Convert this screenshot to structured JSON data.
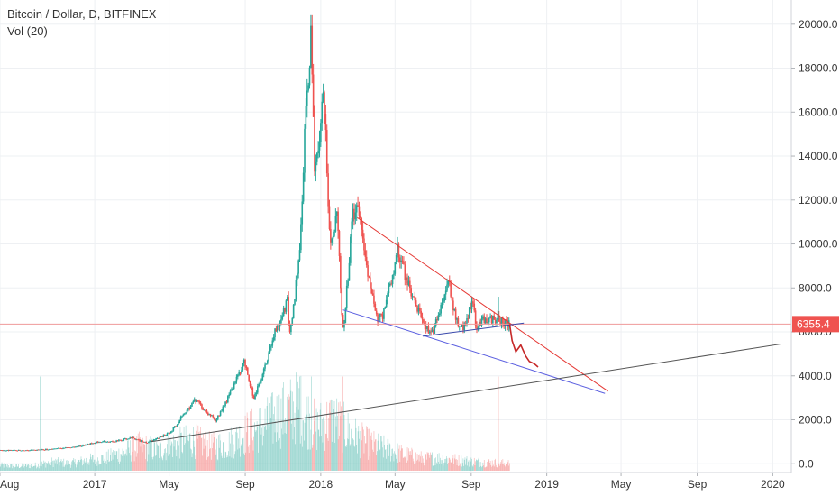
{
  "chart_data": {
    "type": "candlestick",
    "title": "Bitcoin / Dollar, D, BITFINEX",
    "indicator": "Vol (20)",
    "y_axis": {
      "position": "right",
      "ylim": [
        -400,
        21100
      ],
      "ticks": [
        0,
        2000,
        4000,
        6000,
        8000,
        10000,
        12000,
        14000,
        16000,
        18000,
        20000
      ],
      "tick_labels": [
        "0.0",
        "2000.0",
        "4000.0",
        "6000.0",
        "8000.0",
        "10000.0",
        "12000.0",
        "14000.0",
        "16000.0",
        "18000.0",
        "20000.0"
      ]
    },
    "x_axis": {
      "tick_labels": [
        "Aug",
        "2017",
        "May",
        "Sep",
        "2018",
        "May",
        "Sep",
        "2019",
        "May",
        "Sep",
        "2020"
      ],
      "tick_dates": [
        "2016-08-01",
        "2017-01-01",
        "2017-05-01",
        "2017-09-01",
        "2018-01-01",
        "2018-05-01",
        "2018-09-01",
        "2019-01-01",
        "2019-05-01",
        "2019-09-01",
        "2020-01-01"
      ],
      "xlim": [
        "2016-08-01",
        "2020-01-31"
      ]
    },
    "grid": true,
    "price_points": [
      [
        "2016-08-01",
        600
      ],
      [
        "2016-10-01",
        620
      ],
      [
        "2016-12-01",
        760
      ],
      [
        "2017-01-05",
        1000
      ],
      [
        "2017-02-01",
        1000
      ],
      [
        "2017-03-01",
        1200
      ],
      [
        "2017-03-25",
        950
      ],
      [
        "2017-05-01",
        1400
      ],
      [
        "2017-05-25",
        2300
      ],
      [
        "2017-06-12",
        2900
      ],
      [
        "2017-07-15",
        2000
      ],
      [
        "2017-08-10",
        3400
      ],
      [
        "2017-08-31",
        4700
      ],
      [
        "2017-09-15",
        3000
      ],
      [
        "2017-10-15",
        5700
      ],
      [
        "2017-11-08",
        7400
      ],
      [
        "2017-11-12",
        5800
      ],
      [
        "2017-11-28",
        10000
      ],
      [
        "2017-12-07",
        16000
      ],
      [
        "2017-12-17",
        19700
      ],
      [
        "2017-12-22",
        13000
      ],
      [
        "2018-01-06",
        17000
      ],
      [
        "2018-01-17",
        10000
      ],
      [
        "2018-01-28",
        11500
      ],
      [
        "2018-02-06",
        6000
      ],
      [
        "2018-02-20",
        11300
      ],
      [
        "2018-03-05",
        11500
      ],
      [
        "2018-04-01",
        6600
      ],
      [
        "2018-04-10",
        6700
      ],
      [
        "2018-05-05",
        9800
      ],
      [
        "2018-05-30",
        7500
      ],
      [
        "2018-06-28",
        5800
      ],
      [
        "2018-07-25",
        8400
      ],
      [
        "2018-08-14",
        6000
      ],
      [
        "2018-09-05",
        7400
      ],
      [
        "2018-09-08",
        6200
      ],
      [
        "2018-09-20",
        6600
      ],
      [
        "2018-10-15",
        6550
      ],
      [
        "2018-11-02",
        6355
      ]
    ],
    "spike_points": [
      [
        "2018-10-15",
        7600
      ]
    ],
    "volume_relative": [
      0.06,
      0.05,
      0.06,
      0.1,
      0.08,
      0.12,
      0.14,
      0.2,
      0.28,
      0.22,
      0.3,
      0.34,
      0.27,
      0.3,
      0.42,
      0.5,
      0.62,
      0.72,
      0.48,
      0.58,
      0.4,
      0.3,
      0.24,
      0.18,
      0.14,
      0.14,
      0.12,
      0.1,
      0.09,
      0.08
    ],
    "volume_spike_dates": [
      "2018-02-06",
      "2018-10-15",
      "2016-10-05",
      "2017-11-28",
      "2017-12-17"
    ],
    "lines": [
      {
        "name": "descending-resistance",
        "color": "#e53935",
        "from": [
          "2018-03-01",
          11200
        ],
        "to": [
          "2019-04-10",
          3300
        ]
      },
      {
        "name": "descending-support",
        "color": "#5b5fe0",
        "from": [
          "2018-02-06",
          7000
        ],
        "to": [
          "2019-04-05",
          3200
        ]
      },
      {
        "name": "horizontal-support",
        "color": "#3949ab",
        "from": [
          "2018-06-15",
          5800
        ],
        "to": [
          "2018-11-25",
          6400
        ]
      },
      {
        "name": "long-term-trendline",
        "color": "#555555",
        "from": [
          "2017-04-01",
          1000
        ],
        "to": [
          "2020-01-15",
          5450
        ]
      }
    ],
    "projection": [
      [
        "2018-11-02",
        6355
      ],
      [
        "2018-11-06",
        5600
      ],
      [
        "2018-11-12",
        5100
      ],
      [
        "2018-11-20",
        5400
      ],
      [
        "2018-11-28",
        4900
      ],
      [
        "2018-12-04",
        4650
      ],
      [
        "2018-12-12",
        4550
      ],
      [
        "2018-12-18",
        4400
      ]
    ],
    "current_price": {
      "value": 6355.4,
      "label": "6355.4"
    },
    "colors": {
      "up": "#26a69a",
      "down": "#ef5350",
      "price_line": "#ef9a9a",
      "price_label_bg": "#ef5350",
      "projection": "#c62828"
    }
  }
}
